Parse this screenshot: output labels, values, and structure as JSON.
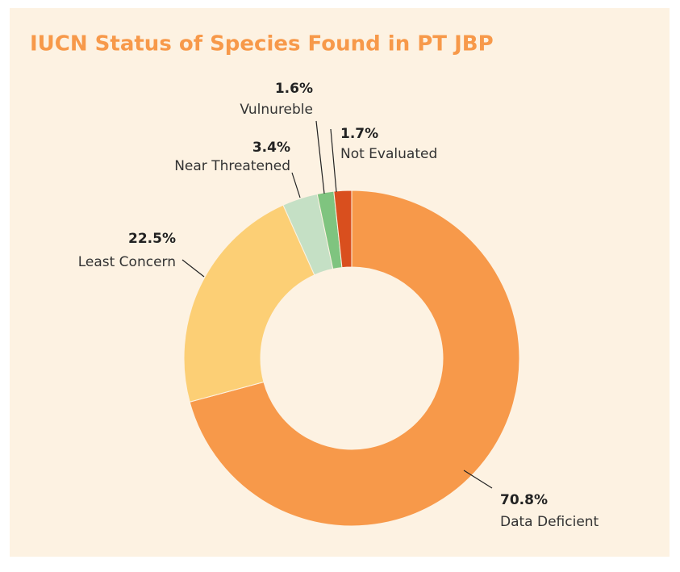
{
  "chart_data": {
    "type": "donut",
    "title": "IUCN Status of Species Found in PT JBP",
    "categories": [
      "Data Deficient",
      "Least Concern",
      "Near Threatened",
      "Vulnureble",
      "Not Evaluated"
    ],
    "values": [
      70.8,
      22.5,
      3.4,
      1.6,
      1.7
    ],
    "value_labels": [
      "70.8%",
      "22.5%",
      "3.4%",
      "1.6%",
      "1.7%"
    ],
    "colors": [
      "#f7994a",
      "#fccf75",
      "#c5e0c5",
      "#7fc47f",
      "#d94f1e"
    ]
  }
}
